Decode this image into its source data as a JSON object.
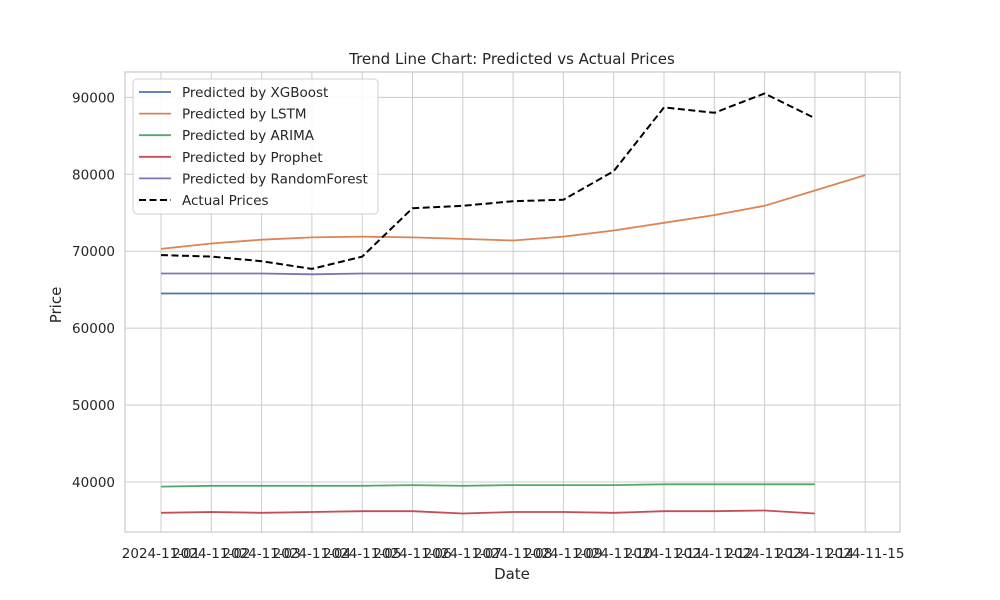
{
  "chart_data": {
    "type": "line",
    "title": "Trend Line Chart: Predicted vs Actual Prices",
    "xlabel": "Date",
    "ylabel": "Price",
    "x": [
      "2024-11-01",
      "2024-11-02",
      "2024-11-03",
      "2024-11-04",
      "2024-11-05",
      "2024-11-06",
      "2024-11-07",
      "2024-11-08",
      "2024-11-09",
      "2024-11-10",
      "2024-11-11",
      "2024-11-12",
      "2024-11-13",
      "2024-11-14",
      "2024-11-15"
    ],
    "x_tick_labels": [
      "2024-11-01",
      "2024-11-02",
      "2024-11-03",
      "2024-11-04",
      "2024-11-05",
      "2024-11-06",
      "2024-11-07",
      "2024-11-08",
      "2024-11-09",
      "2024-11-10",
      "2024-11-11",
      "2024-11-12",
      "2024-11-13",
      "2024-11-14",
      "2024-11-15"
    ],
    "y_ticks": [
      40000,
      50000,
      60000,
      70000,
      80000,
      90000
    ],
    "ylim": [
      33500,
      93300
    ],
    "grid": true,
    "legend_position": "top-left",
    "series": [
      {
        "name": "Predicted by XGBoost",
        "color": "#4c72b0",
        "style": "solid",
        "values": [
          64500,
          64500,
          64500,
          64500,
          64500,
          64500,
          64500,
          64500,
          64500,
          64500,
          64500,
          64500,
          64500,
          64500,
          null
        ]
      },
      {
        "name": "Predicted by LSTM",
        "color": "#dd8452",
        "style": "solid",
        "values": [
          70300,
          71000,
          71500,
          71800,
          71900,
          71800,
          71600,
          71400,
          71900,
          72700,
          73700,
          74700,
          75900,
          77900,
          79900
        ]
      },
      {
        "name": "Predicted by ARIMA",
        "color": "#55a868",
        "style": "solid",
        "values": [
          39400,
          39500,
          39500,
          39500,
          39500,
          39600,
          39500,
          39600,
          39600,
          39600,
          39700,
          39700,
          39700,
          39700,
          null
        ]
      },
      {
        "name": "Predicted by Prophet",
        "color": "#c44e52",
        "style": "solid",
        "values": [
          36000,
          36100,
          36000,
          36100,
          36200,
          36200,
          35900,
          36100,
          36100,
          36000,
          36200,
          36200,
          36300,
          35900,
          null
        ]
      },
      {
        "name": "Predicted by RandomForest",
        "color": "#8172b3",
        "style": "solid",
        "values": [
          67100,
          67100,
          67100,
          67000,
          67100,
          67100,
          67100,
          67100,
          67100,
          67100,
          67100,
          67100,
          67100,
          67100,
          null
        ]
      },
      {
        "name": "Actual Prices",
        "color": "#000000",
        "style": "dashed",
        "values": [
          69500,
          69300,
          68700,
          67700,
          69300,
          75600,
          75900,
          76500,
          76700,
          80400,
          88700,
          88000,
          90500,
          87300,
          null
        ]
      }
    ]
  }
}
